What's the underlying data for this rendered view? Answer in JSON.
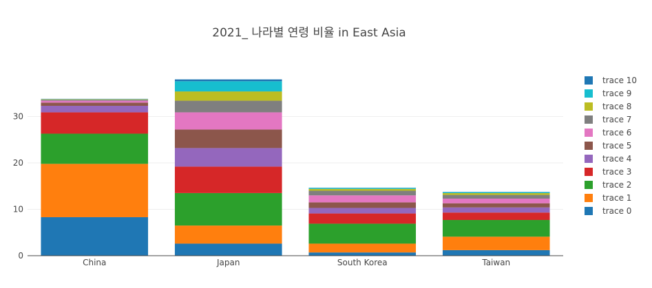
{
  "chart_data": {
    "type": "bar",
    "barmode": "stack",
    "title": "2021_ 나라별 연령 비율 in East Asia",
    "xlabel": "",
    "ylabel": "",
    "categories": [
      "China",
      "Japan",
      "South Korea",
      "Taiwan"
    ],
    "ylim": [
      0,
      40
    ],
    "yticks": [
      0,
      10,
      20,
      30
    ],
    "grid": true,
    "legend_position": "right",
    "series": [
      {
        "name": "trace 0",
        "color": "#1f77b4",
        "values": [
          8.3,
          2.6,
          0.7,
          1.2
        ]
      },
      {
        "name": "trace 1",
        "color": "#ff7f0e",
        "values": [
          11.5,
          3.9,
          1.9,
          2.9
        ]
      },
      {
        "name": "trace 2",
        "color": "#2ca02c",
        "values": [
          6.5,
          7.0,
          4.3,
          3.6
        ]
      },
      {
        "name": "trace 3",
        "color": "#d62728",
        "values": [
          4.6,
          5.7,
          2.2,
          1.6
        ]
      },
      {
        "name": "trace 4",
        "color": "#9467bd",
        "values": [
          1.4,
          4.0,
          1.2,
          1.1
        ]
      },
      {
        "name": "trace 5",
        "color": "#8c564b",
        "values": [
          0.7,
          4.0,
          1.2,
          0.9
        ]
      },
      {
        "name": "trace 6",
        "color": "#e377c2",
        "values": [
          0.4,
          3.7,
          1.5,
          1.0
        ]
      },
      {
        "name": "trace 7",
        "color": "#7f7f7f",
        "values": [
          0.2,
          2.5,
          1.0,
          0.8
        ]
      },
      {
        "name": "trace 8",
        "color": "#bcbd22",
        "values": [
          0.1,
          2.0,
          0.4,
          0.4
        ]
      },
      {
        "name": "trace 9",
        "color": "#17becf",
        "values": [
          0.05,
          2.2,
          0.2,
          0.2
        ]
      },
      {
        "name": "trace 10",
        "color": "#1f77b4",
        "values": [
          0.05,
          0.4,
          0.05,
          0.05
        ]
      }
    ]
  }
}
